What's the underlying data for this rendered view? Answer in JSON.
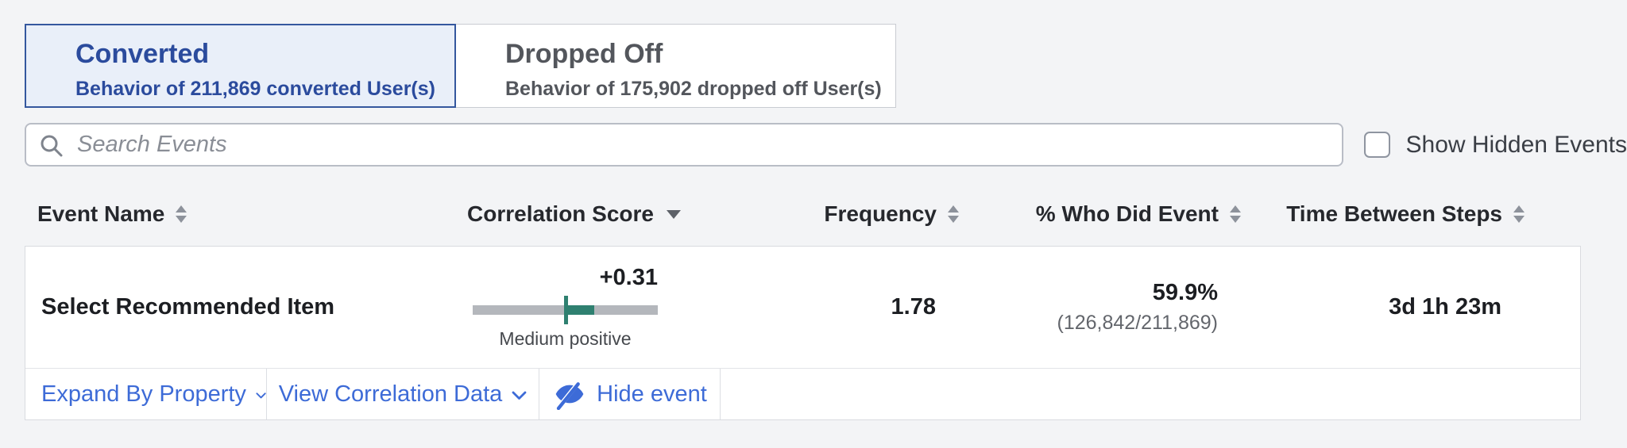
{
  "tabs": [
    {
      "title": "Converted",
      "subtitle": "Behavior of 211,869 converted User(s)",
      "active": true
    },
    {
      "title": "Dropped Off",
      "subtitle": "Behavior of 175,902 dropped off User(s)",
      "active": false
    }
  ],
  "search": {
    "placeholder": "Search Events"
  },
  "show_hidden": {
    "label": "Show Hidden Events",
    "checked": false
  },
  "table": {
    "columns": [
      {
        "label": "Event Name",
        "sort": "both-arrows"
      },
      {
        "label": "Correlation Score",
        "sort": "desc-arrow"
      },
      {
        "label": "Frequency",
        "sort": "both-arrows"
      },
      {
        "label": "% Who Did Event",
        "sort": "both-arrows"
      },
      {
        "label": "Time Between Steps",
        "sort": "both-arrows"
      }
    ],
    "row": {
      "event_name": "Select Recommended Item",
      "correlation": {
        "score": "+0.31",
        "value": 0.31,
        "label": "Medium positive"
      },
      "frequency": "1.78",
      "pct_who_did": {
        "pct": "59.9%",
        "fraction": "(126,842/211,869)"
      },
      "time_between_steps": "3d 1h 23m"
    },
    "actions": [
      {
        "label": "Expand By Property"
      },
      {
        "label": "View Correlation Data"
      },
      {
        "label": "Hide event"
      }
    ]
  },
  "colors": {
    "accent_blue": "#3d6bd7",
    "active_tab_text": "#2b4b9d",
    "active_tab_bg": "#e9eff9",
    "active_tab_border": "#34579e",
    "correlation_teal": "#2f8070",
    "bar_track_gray": "#b4b7bc",
    "page_bg": "#f3f4f6"
  }
}
